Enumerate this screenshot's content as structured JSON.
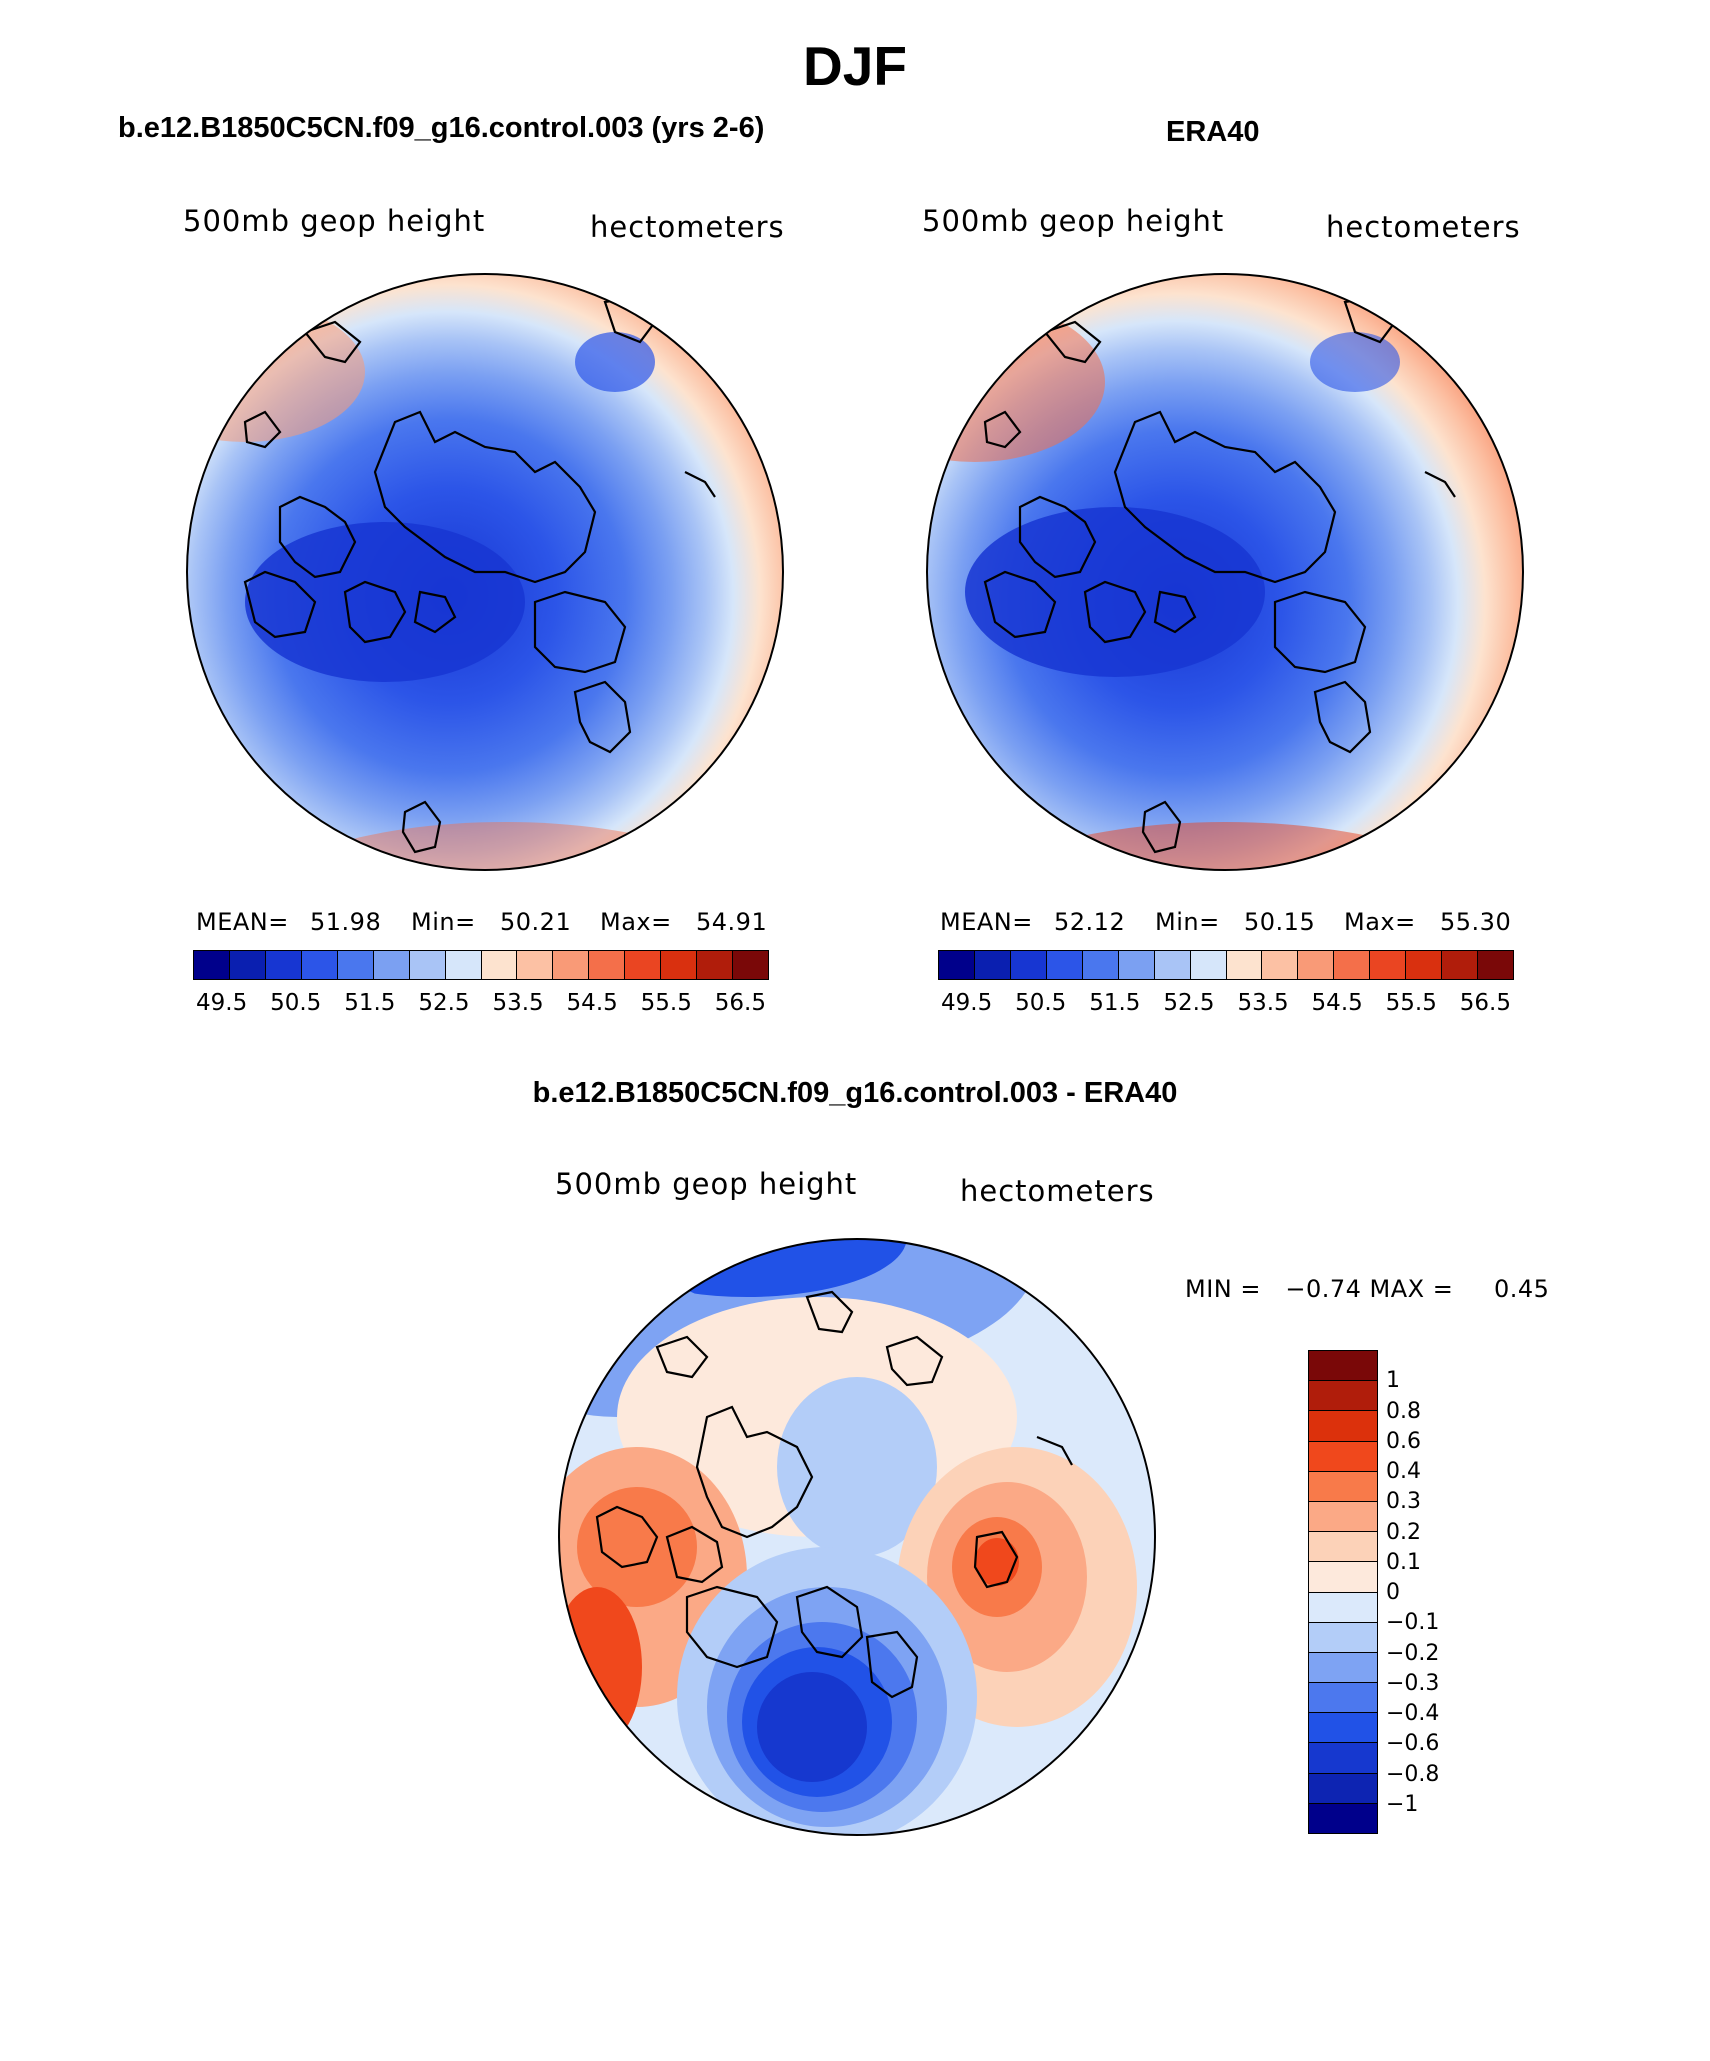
{
  "title": "DJF",
  "panels": {
    "model": {
      "heading": "b.e12.B1850C5CN.f09_g16.control.003 (yrs 2-6)",
      "field_label": "500mb geop height",
      "units_label": "hectometers",
      "mean_label": "MEAN=",
      "mean_value": "51.98",
      "min_label": "Min=",
      "min_value": "50.21",
      "max_label": "Max=",
      "max_value": "54.91"
    },
    "obs": {
      "heading": "ERA40",
      "field_label": "500mb geop height",
      "units_label": "hectometers",
      "mean_label": "MEAN=",
      "mean_value": "52.12",
      "min_label": "Min=",
      "min_value": "50.15",
      "max_label": "Max=",
      "max_value": "55.30"
    },
    "diff": {
      "heading": "b.e12.B1850C5CN.f09_g16.control.003 - ERA40",
      "field_label": "500mb geop height",
      "units_label": "hectometers",
      "minmax_label": "MIN =   −0.74 MAX =     0.45"
    }
  },
  "colorbar_main": {
    "tick_labels": [
      "49.5",
      "50.5",
      "51.5",
      "52.5",
      "53.5",
      "54.5",
      "55.5",
      "56.5"
    ],
    "colors": [
      "#00008b",
      "#0a1fb0",
      "#1736d2",
      "#2c55e8",
      "#4a77ee",
      "#7ba0f2",
      "#a9c4f6",
      "#d6e6fa",
      "#fde3cf",
      "#fcc1a4",
      "#f99a77",
      "#f46f4a",
      "#ea4522",
      "#d9300f",
      "#b01d0b",
      "#7a0808"
    ]
  },
  "colorbar_diff": {
    "tick_labels": [
      "1",
      "0.8",
      "0.6",
      "0.4",
      "0.3",
      "0.2",
      "0.1",
      "0",
      "−0.1",
      "−0.2",
      "−0.3",
      "−0.4",
      "−0.6",
      "−0.8",
      "−1"
    ],
    "colors": [
      "#7a0808",
      "#b01d0b",
      "#dc310c",
      "#f0481c",
      "#f87a4a",
      "#fba986",
      "#fcd2b8",
      "#fde9dc",
      "#dbe9fb",
      "#b3cdf8",
      "#7ea3f3",
      "#4c78ee",
      "#2152e7",
      "#1638cf",
      "#0d24b2",
      "#00008b"
    ]
  }
}
